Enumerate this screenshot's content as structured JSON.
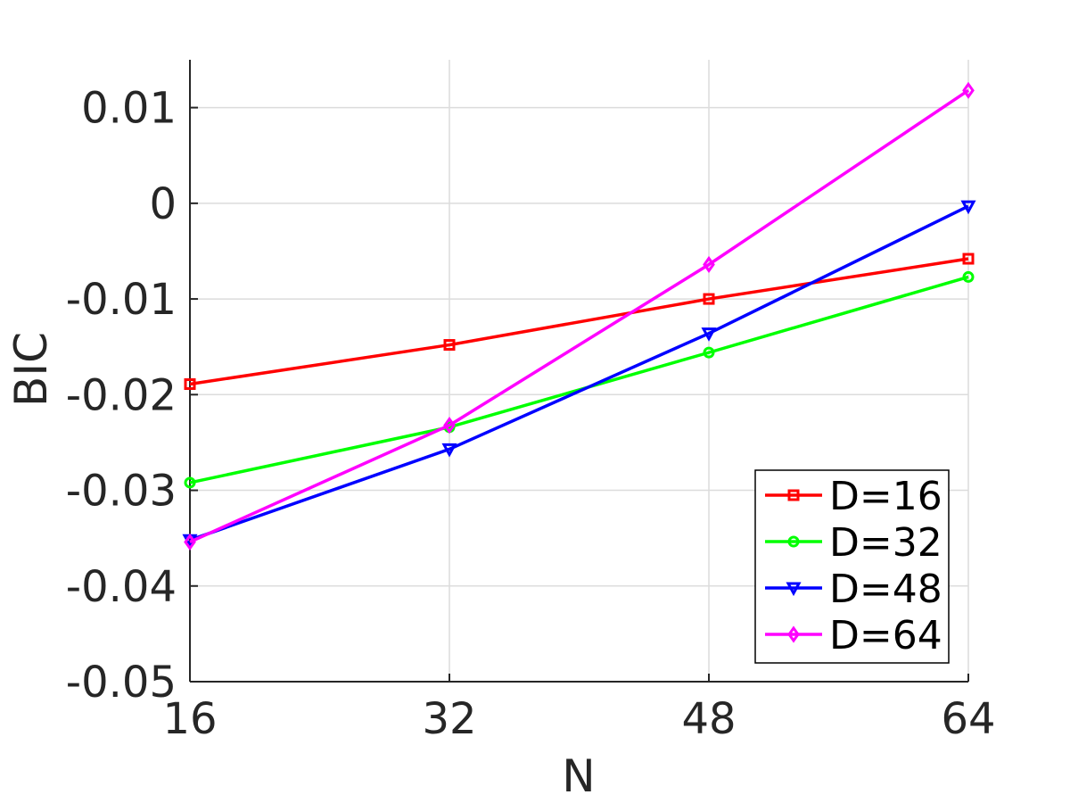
{
  "chart_data": {
    "type": "line",
    "title": "",
    "xlabel": "N",
    "ylabel": "BIC",
    "x": [
      16,
      32,
      48,
      64
    ],
    "xlim": [
      16,
      64
    ],
    "ylim": [
      -0.05,
      0.015
    ],
    "xticks": [
      16,
      32,
      48,
      64
    ],
    "xtick_labels": [
      "16",
      "32",
      "48",
      "64"
    ],
    "yticks": [
      -0.05,
      -0.04,
      -0.03,
      -0.02,
      -0.01,
      0,
      0.01
    ],
    "ytick_labels": [
      "-0.05",
      "-0.04",
      "-0.03",
      "-0.02",
      "-0.01",
      "0",
      "0.01"
    ],
    "grid": true,
    "legend_position": "bottom-right",
    "series": [
      {
        "name": "D=16",
        "color": "#ff0000",
        "marker": "square",
        "values": [
          -0.0189,
          -0.0148,
          -0.01,
          -0.0058
        ]
      },
      {
        "name": "D=32",
        "color": "#00ff00",
        "marker": "circle",
        "values": [
          -0.0292,
          -0.0234,
          -0.0156,
          -0.0077
        ]
      },
      {
        "name": "D=48",
        "color": "#0000ff",
        "marker": "triangle-down",
        "values": [
          -0.0352,
          -0.0257,
          -0.0136,
          -0.0003
        ]
      },
      {
        "name": "D=64",
        "color": "#ff00ff",
        "marker": "diamond",
        "values": [
          -0.0354,
          -0.0232,
          -0.0064,
          0.0118
        ]
      }
    ]
  }
}
